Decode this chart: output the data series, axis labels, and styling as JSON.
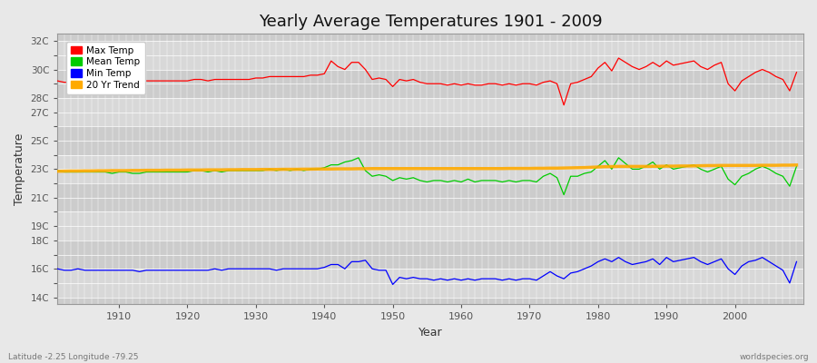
{
  "title": "Yearly Average Temperatures 1901 - 2009",
  "xlabel": "Year",
  "ylabel": "Temperature",
  "years": [
    1901,
    1902,
    1903,
    1904,
    1905,
    1906,
    1907,
    1908,
    1909,
    1910,
    1911,
    1912,
    1913,
    1914,
    1915,
    1916,
    1917,
    1918,
    1919,
    1920,
    1921,
    1922,
    1923,
    1924,
    1925,
    1926,
    1927,
    1928,
    1929,
    1930,
    1931,
    1932,
    1933,
    1934,
    1935,
    1936,
    1937,
    1938,
    1939,
    1940,
    1941,
    1942,
    1943,
    1944,
    1945,
    1946,
    1947,
    1948,
    1949,
    1950,
    1951,
    1952,
    1953,
    1954,
    1955,
    1956,
    1957,
    1958,
    1959,
    1960,
    1961,
    1962,
    1963,
    1964,
    1965,
    1966,
    1967,
    1968,
    1969,
    1970,
    1971,
    1972,
    1973,
    1974,
    1975,
    1976,
    1977,
    1978,
    1979,
    1980,
    1981,
    1982,
    1983,
    1984,
    1985,
    1986,
    1987,
    1988,
    1989,
    1990,
    1991,
    1992,
    1993,
    1994,
    1995,
    1996,
    1997,
    1998,
    1999,
    2000,
    2001,
    2002,
    2003,
    2004,
    2005,
    2006,
    2007,
    2008,
    2009
  ],
  "max_temp": [
    29.2,
    29.1,
    29.1,
    29.2,
    29.2,
    29.2,
    29.1,
    29.2,
    29.1,
    29.1,
    29.2,
    29.1,
    29.1,
    29.2,
    29.2,
    29.2,
    29.2,
    29.2,
    29.2,
    29.2,
    29.3,
    29.3,
    29.2,
    29.3,
    29.3,
    29.3,
    29.3,
    29.3,
    29.3,
    29.4,
    29.4,
    29.5,
    29.5,
    29.5,
    29.5,
    29.5,
    29.5,
    29.6,
    29.6,
    29.7,
    30.6,
    30.2,
    30.0,
    30.5,
    30.5,
    30.0,
    29.3,
    29.4,
    29.3,
    28.8,
    29.3,
    29.2,
    29.3,
    29.1,
    29.0,
    29.0,
    29.0,
    28.9,
    29.0,
    28.9,
    29.0,
    28.9,
    28.9,
    29.0,
    29.0,
    28.9,
    29.0,
    28.9,
    29.0,
    29.0,
    28.9,
    29.1,
    29.2,
    29.0,
    27.5,
    29.0,
    29.1,
    29.3,
    29.5,
    30.1,
    30.5,
    29.9,
    30.8,
    30.5,
    30.2,
    30.0,
    30.2,
    30.5,
    30.2,
    30.6,
    30.3,
    30.4,
    30.5,
    30.6,
    30.2,
    30.0,
    30.3,
    30.5,
    29.0,
    28.5,
    29.2,
    29.5,
    29.8,
    30.0,
    29.8,
    29.5,
    29.3,
    28.5,
    29.8
  ],
  "mean_temp": [
    22.9,
    22.8,
    22.8,
    22.8,
    22.8,
    22.8,
    22.8,
    22.8,
    22.7,
    22.8,
    22.8,
    22.7,
    22.7,
    22.8,
    22.8,
    22.8,
    22.8,
    22.8,
    22.8,
    22.8,
    22.9,
    22.9,
    22.8,
    22.9,
    22.8,
    22.9,
    22.9,
    22.9,
    22.9,
    22.9,
    22.9,
    23.0,
    22.9,
    23.0,
    22.9,
    23.0,
    22.9,
    23.0,
    23.0,
    23.1,
    23.3,
    23.3,
    23.5,
    23.6,
    23.8,
    22.9,
    22.5,
    22.6,
    22.5,
    22.2,
    22.4,
    22.3,
    22.4,
    22.2,
    22.1,
    22.2,
    22.2,
    22.1,
    22.2,
    22.1,
    22.3,
    22.1,
    22.2,
    22.2,
    22.2,
    22.1,
    22.2,
    22.1,
    22.2,
    22.2,
    22.1,
    22.5,
    22.7,
    22.4,
    21.2,
    22.5,
    22.5,
    22.7,
    22.8,
    23.2,
    23.6,
    23.0,
    23.8,
    23.4,
    23.0,
    23.0,
    23.2,
    23.5,
    23.0,
    23.3,
    23.0,
    23.1,
    23.2,
    23.3,
    23.0,
    22.8,
    23.0,
    23.2,
    22.3,
    21.9,
    22.5,
    22.7,
    23.0,
    23.2,
    23.0,
    22.7,
    22.5,
    21.8,
    23.2
  ],
  "min_temp": [
    16.0,
    15.9,
    15.9,
    16.0,
    15.9,
    15.9,
    15.9,
    15.9,
    15.9,
    15.9,
    15.9,
    15.9,
    15.8,
    15.9,
    15.9,
    15.9,
    15.9,
    15.9,
    15.9,
    15.9,
    15.9,
    15.9,
    15.9,
    16.0,
    15.9,
    16.0,
    16.0,
    16.0,
    16.0,
    16.0,
    16.0,
    16.0,
    15.9,
    16.0,
    16.0,
    16.0,
    16.0,
    16.0,
    16.0,
    16.1,
    16.3,
    16.3,
    16.0,
    16.5,
    16.5,
    16.6,
    16.0,
    15.9,
    15.9,
    14.9,
    15.4,
    15.3,
    15.4,
    15.3,
    15.3,
    15.2,
    15.3,
    15.2,
    15.3,
    15.2,
    15.3,
    15.2,
    15.3,
    15.3,
    15.3,
    15.2,
    15.3,
    15.2,
    15.3,
    15.3,
    15.2,
    15.5,
    15.8,
    15.5,
    15.3,
    15.7,
    15.8,
    16.0,
    16.2,
    16.5,
    16.7,
    16.5,
    16.8,
    16.5,
    16.3,
    16.4,
    16.5,
    16.7,
    16.3,
    16.8,
    16.5,
    16.6,
    16.7,
    16.8,
    16.5,
    16.3,
    16.5,
    16.7,
    16.0,
    15.6,
    16.2,
    16.5,
    16.6,
    16.8,
    16.5,
    16.2,
    15.9,
    15.0,
    16.5
  ],
  "trend": [
    22.85,
    22.86,
    22.87,
    22.87,
    22.88,
    22.88,
    22.89,
    22.89,
    22.9,
    22.9,
    22.9,
    22.91,
    22.91,
    22.92,
    22.92,
    22.92,
    22.93,
    22.93,
    22.93,
    22.94,
    22.94,
    22.94,
    22.95,
    22.95,
    22.95,
    22.96,
    22.96,
    22.97,
    22.97,
    22.97,
    22.98,
    22.98,
    22.98,
    22.99,
    22.99,
    22.99,
    23.0,
    23.0,
    23.01,
    23.01,
    23.01,
    23.02,
    23.02,
    23.02,
    23.03,
    23.03,
    23.04,
    23.04,
    23.04,
    23.04,
    23.04,
    23.04,
    23.04,
    23.04,
    23.04,
    23.04,
    23.04,
    23.04,
    23.04,
    23.04,
    23.04,
    23.04,
    23.04,
    23.04,
    23.04,
    23.04,
    23.05,
    23.05,
    23.05,
    23.05,
    23.06,
    23.06,
    23.07,
    23.07,
    23.08,
    23.09,
    23.1,
    23.11,
    23.13,
    23.15,
    23.17,
    23.18,
    23.19,
    23.19,
    23.19,
    23.19,
    23.19,
    23.2,
    23.2,
    23.21,
    23.21,
    23.22,
    23.22,
    23.23,
    23.24,
    23.25,
    23.25,
    23.26,
    23.26,
    23.26,
    23.26,
    23.26,
    23.26,
    23.27,
    23.27,
    23.27,
    23.28,
    23.28,
    23.29
  ],
  "bg_color": "#e8e8e8",
  "plot_bg_color": "#cccccc",
  "stripe_color": "#d8d8d8",
  "grid_color": "#ffffff",
  "max_color": "#ff0000",
  "mean_color": "#00cc00",
  "min_color": "#0000ff",
  "trend_color": "#ffaa00",
  "ylim": [
    13.5,
    32.5
  ],
  "ytick_positions": [
    14,
    15,
    16,
    17,
    18,
    19,
    20,
    21,
    22,
    23,
    24,
    25,
    26,
    27,
    28,
    29,
    30,
    31,
    32
  ],
  "ytick_labeled": {
    "14": "14C",
    "16": "16C",
    "18": "18C",
    "19": "19C",
    "21": "21C",
    "23": "23C",
    "25": "25C",
    "27": "27C",
    "28": "28C",
    "30": "30C",
    "32": "32C"
  },
  "xlim": [
    1901,
    2010
  ],
  "xticks": [
    1910,
    1920,
    1930,
    1940,
    1950,
    1960,
    1970,
    1980,
    1990,
    2000
  ],
  "bottom_left": "Latitude -2.25 Longitude -79.25",
  "bottom_right": "worldspecies.org",
  "legend_items": [
    "Max Temp",
    "Mean Temp",
    "Min Temp",
    "20 Yr Trend"
  ],
  "legend_colors": [
    "#ff0000",
    "#00cc00",
    "#0000ff",
    "#ffaa00"
  ]
}
